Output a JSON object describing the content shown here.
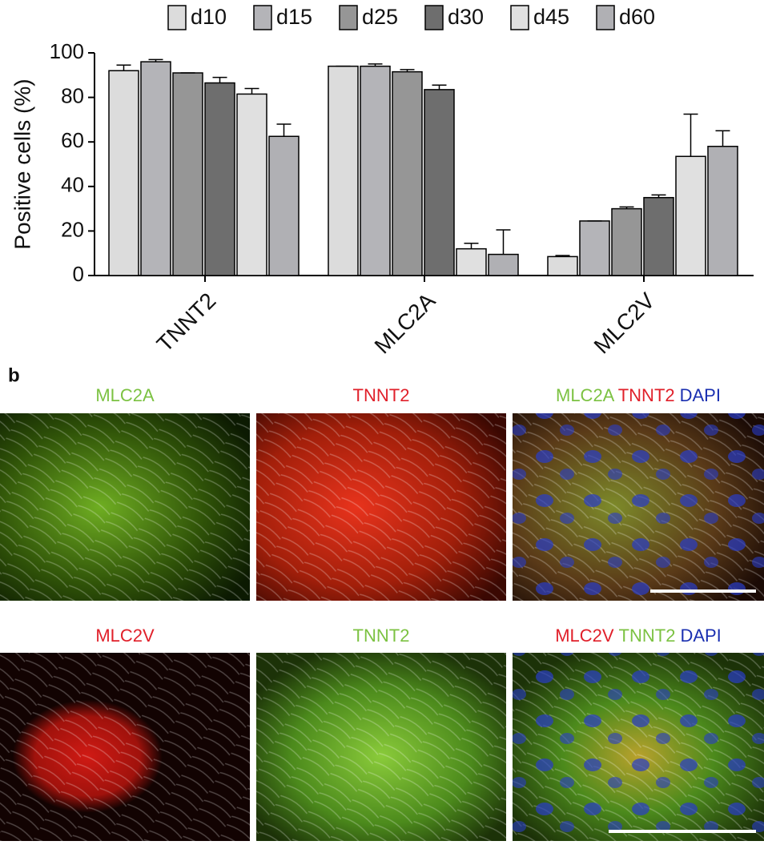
{
  "chart_data": {
    "type": "bar",
    "ylabel": "Positive cells (%)",
    "categories": [
      "TNNT2",
      "MLC2A",
      "MLC2V"
    ],
    "series": [
      {
        "name": "d10",
        "color": "#dcdcdc",
        "values": [
          92,
          94,
          8.5
        ],
        "errors": [
          2.5,
          0,
          0.5
        ]
      },
      {
        "name": "d15",
        "color": "#b4b4b8",
        "values": [
          96,
          94,
          24.5
        ],
        "errors": [
          1,
          1,
          0
        ]
      },
      {
        "name": "d25",
        "color": "#969696",
        "values": [
          91,
          91.5,
          30
        ],
        "errors": [
          0,
          1,
          0.8
        ]
      },
      {
        "name": "d30",
        "color": "#6e6e6e",
        "values": [
          86.5,
          83.5,
          35
        ],
        "errors": [
          2.5,
          2,
          1.2
        ]
      },
      {
        "name": "d45",
        "color": "#e0e0e0",
        "values": [
          81.5,
          12,
          53.5
        ],
        "errors": [
          2.5,
          2.5,
          19
        ]
      },
      {
        "name": "d60",
        "color": "#b0b0b4",
        "values": [
          62.5,
          9.5,
          58
        ],
        "errors": [
          5.5,
          11,
          7
        ]
      }
    ],
    "ylim": [
      0,
      100
    ],
    "yticks": [
      0,
      20,
      40,
      60,
      80,
      100
    ],
    "legend": "top"
  },
  "panel_b": {
    "label": "b",
    "rows": [
      [
        {
          "title": [
            {
              "text": "MLC2A",
              "color": "#7cc242"
            }
          ]
        },
        {
          "title": [
            {
              "text": "TNNT2",
              "color": "#e0202a"
            }
          ]
        },
        {
          "title": [
            {
              "text": "MLC2A",
              "color": "#7cc242"
            },
            {
              "text": "TNNT2",
              "color": "#e0202a"
            },
            {
              "text": "DAPI",
              "color": "#1a2fb0"
            }
          ]
        }
      ],
      [
        {
          "title": [
            {
              "text": "MLC2V",
              "color": "#e0202a"
            }
          ]
        },
        {
          "title": [
            {
              "text": "TNNT2",
              "color": "#7cc242"
            }
          ]
        },
        {
          "title": [
            {
              "text": "MLC2V",
              "color": "#e0202a"
            },
            {
              "text": "TNNT2",
              "color": "#7cc242"
            },
            {
              "text": "DAPI",
              "color": "#1a2fb0"
            }
          ]
        }
      ]
    ]
  }
}
